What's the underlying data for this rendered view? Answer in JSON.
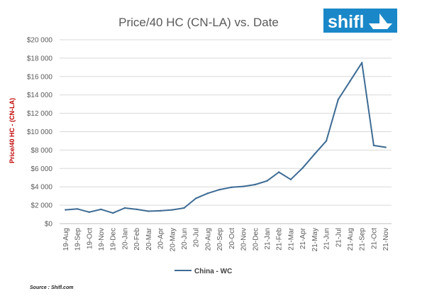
{
  "logo": {
    "text": "shifl",
    "bg_color": "#1a88c8"
  },
  "source": "Source : Shifl.com",
  "chart_data": {
    "type": "line",
    "title": "Price/40 HC (CN-LA) vs. Date",
    "ylabel_prefix": "Price/",
    "ylabel_rest": "40 HC - (CN-LA)",
    "xlabel": "",
    "categories": [
      "19-Aug",
      "19-Sep",
      "19-Oct",
      "19-Nov",
      "19-Dec",
      "20-Jan",
      "20-Feb",
      "20-Mar",
      "20-Apr",
      "20-May",
      "20-Jun",
      "20-Jul",
      "20-Aug",
      "20-Sep",
      "20-Oct",
      "20-Nov",
      "20-Dec",
      "21-Jan",
      "21-Feb",
      "21-Mar",
      "21-Apr",
      "21-May",
      "21-Jun",
      "21-Jul",
      "21-Aug",
      "21-Sep",
      "21-Oct",
      "21-Nov"
    ],
    "series": [
      {
        "name": "China - WC",
        "color": "#3d6b94",
        "values": [
          1500,
          1600,
          1250,
          1550,
          1150,
          1700,
          1550,
          1350,
          1400,
          1500,
          1700,
          2750,
          3300,
          3700,
          3950,
          4050,
          4250,
          4650,
          5600,
          4800,
          6050,
          7550,
          9000,
          13500,
          15500,
          17500,
          8500,
          8300
        ]
      }
    ],
    "ylim": [
      0,
      20000
    ],
    "yticks": [
      0,
      2000,
      4000,
      6000,
      8000,
      10000,
      12000,
      14000,
      16000,
      18000,
      20000
    ],
    "ytick_labels": [
      "$0",
      "$2 000",
      "$4 000",
      "$6 000",
      "$8 000",
      "$10 000",
      "$12 000",
      "$14 000",
      "$16 000",
      "$18 000",
      "$20 000"
    ],
    "grid": true,
    "legend_position": "bottom"
  }
}
